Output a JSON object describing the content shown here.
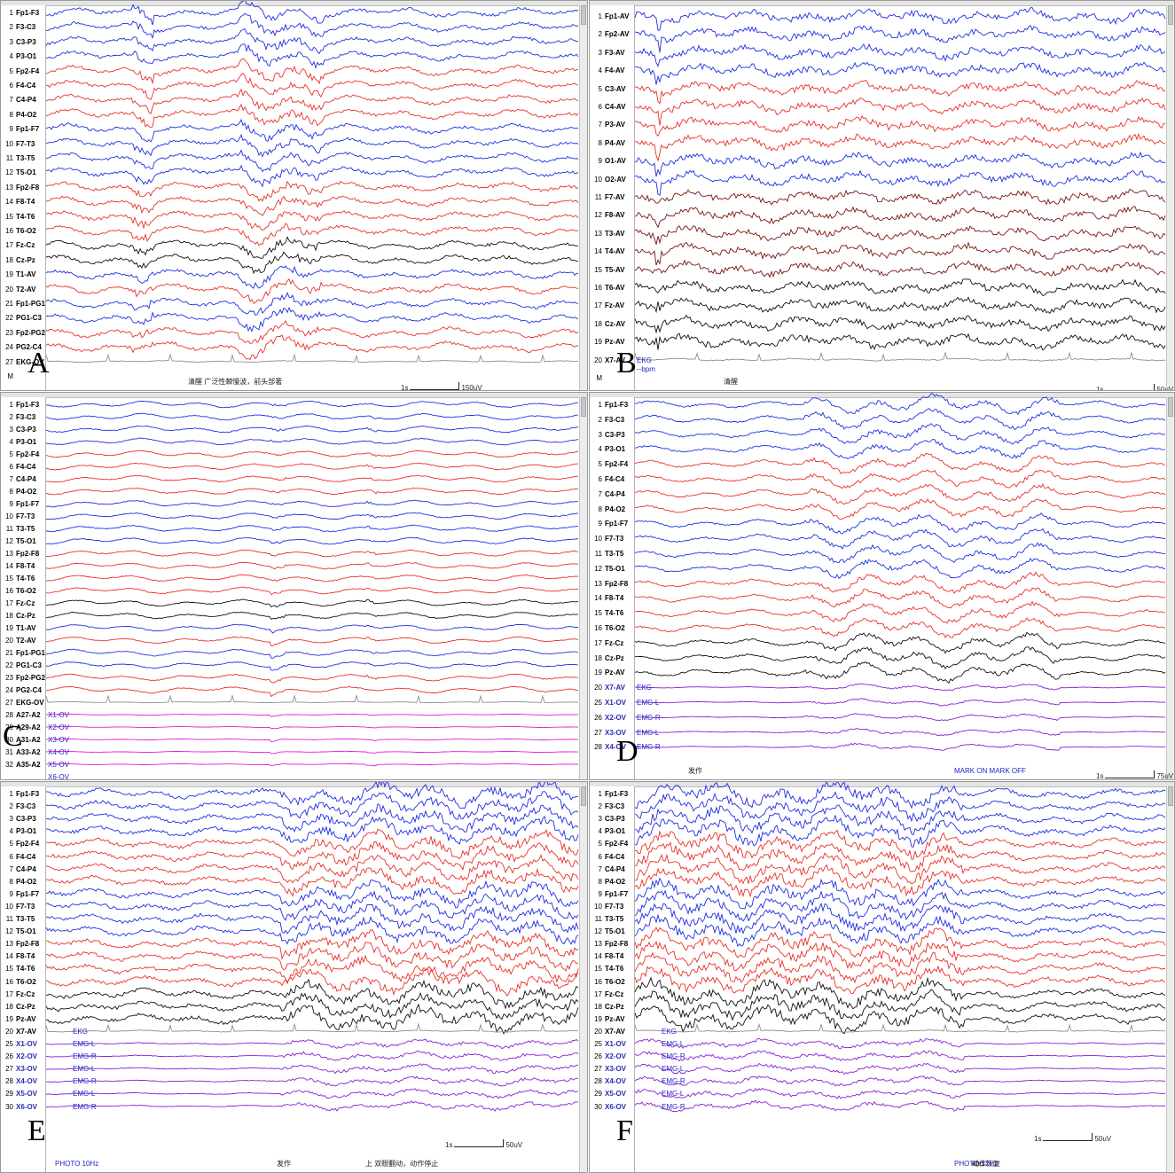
{
  "colors": {
    "blue": "#1f2fe0",
    "red": "#e8322a",
    "black": "#111111",
    "maroon": "#7a1414",
    "gray": "#8f8f8f",
    "magenta": "#e020d8",
    "purple": "#8a1fd0"
  },
  "panels": [
    {
      "id": "A",
      "letter": "A",
      "channels": [
        {
          "n": "1",
          "name": "Fp1-F3",
          "color": "blue"
        },
        {
          "n": "2",
          "name": "F3-C3",
          "color": "blue"
        },
        {
          "n": "3",
          "name": "C3-P3",
          "color": "blue"
        },
        {
          "n": "4",
          "name": "P3-O1",
          "color": "blue"
        },
        {
          "n": "5",
          "name": "Fp2-F4",
          "color": "red"
        },
        {
          "n": "6",
          "name": "F4-C4",
          "color": "red"
        },
        {
          "n": "7",
          "name": "C4-P4",
          "color": "red"
        },
        {
          "n": "8",
          "name": "P4-O2",
          "color": "red"
        },
        {
          "n": "9",
          "name": "Fp1-F7",
          "color": "blue"
        },
        {
          "n": "10",
          "name": "F7-T3",
          "color": "blue"
        },
        {
          "n": "11",
          "name": "T3-T5",
          "color": "blue"
        },
        {
          "n": "12",
          "name": "T5-O1",
          "color": "blue"
        },
        {
          "n": "13",
          "name": "Fp2-F8",
          "color": "red"
        },
        {
          "n": "14",
          "name": "F8-T4",
          "color": "red"
        },
        {
          "n": "15",
          "name": "T4-T6",
          "color": "red"
        },
        {
          "n": "16",
          "name": "T6-O2",
          "color": "red"
        },
        {
          "n": "17",
          "name": "Fz-Cz",
          "color": "black"
        },
        {
          "n": "18",
          "name": "Cz-Pz",
          "color": "black"
        },
        {
          "n": "19",
          "name": "T1-AV",
          "color": "blue"
        },
        {
          "n": "20",
          "name": "T2-AV",
          "color": "red"
        },
        {
          "n": "21",
          "name": "Fp1-PG1",
          "color": "blue"
        },
        {
          "n": "22",
          "name": "PG1-C3",
          "color": "blue"
        },
        {
          "n": "23",
          "name": "Fp2-PG2",
          "color": "red"
        },
        {
          "n": "24",
          "name": "PG2-C4",
          "color": "red"
        },
        {
          "n": "27",
          "name": "EKG-OV",
          "color": "gray"
        },
        {
          "n": "M",
          "name": "",
          "color": "none"
        }
      ],
      "aux_labels": [],
      "notes": [
        {
          "text": "清醒 广泛性棘慢波，前头部著",
          "color": "dark"
        }
      ],
      "time_scale": "1s",
      "amp_scale": "150uV"
    },
    {
      "id": "B",
      "letter": "B",
      "channels": [
        {
          "n": "1",
          "name": "Fp1-AV",
          "color": "blue"
        },
        {
          "n": "2",
          "name": "Fp2-AV",
          "color": "blue"
        },
        {
          "n": "3",
          "name": "F3-AV",
          "color": "blue"
        },
        {
          "n": "4",
          "name": "F4-AV",
          "color": "blue"
        },
        {
          "n": "5",
          "name": "C3-AV",
          "color": "red"
        },
        {
          "n": "6",
          "name": "C4-AV",
          "color": "red"
        },
        {
          "n": "7",
          "name": "P3-AV",
          "color": "red"
        },
        {
          "n": "8",
          "name": "P4-AV",
          "color": "red"
        },
        {
          "n": "9",
          "name": "O1-AV",
          "color": "blue"
        },
        {
          "n": "10",
          "name": "O2-AV",
          "color": "blue"
        },
        {
          "n": "11",
          "name": "F7-AV",
          "color": "maroon"
        },
        {
          "n": "12",
          "name": "F8-AV",
          "color": "maroon"
        },
        {
          "n": "13",
          "name": "T3-AV",
          "color": "maroon"
        },
        {
          "n": "14",
          "name": "T4-AV",
          "color": "maroon"
        },
        {
          "n": "15",
          "name": "T5-AV",
          "color": "maroon"
        },
        {
          "n": "16",
          "name": "T6-AV",
          "color": "black"
        },
        {
          "n": "17",
          "name": "Fz-AV",
          "color": "black"
        },
        {
          "n": "18",
          "name": "Cz-AV",
          "color": "black"
        },
        {
          "n": "19",
          "name": "Pz-AV",
          "color": "black"
        },
        {
          "n": "20",
          "name": "X7-AV",
          "color": "gray"
        },
        {
          "n": "M",
          "name": "",
          "color": "none"
        }
      ],
      "aux_labels": [
        {
          "text": "EKG",
          "row": 19
        },
        {
          "text": "--bpm",
          "row": 19.5
        }
      ],
      "notes": [
        {
          "text": "清醒",
          "color": "dark"
        }
      ],
      "time_scale": "1s",
      "amp_scale": "50uV"
    },
    {
      "id": "C",
      "letter": "C",
      "channels": [
        {
          "n": "1",
          "name": "Fp1-F3",
          "color": "blue"
        },
        {
          "n": "2",
          "name": "F3-C3",
          "color": "blue"
        },
        {
          "n": "3",
          "name": "C3-P3",
          "color": "blue"
        },
        {
          "n": "4",
          "name": "P3-O1",
          "color": "blue"
        },
        {
          "n": "5",
          "name": "Fp2-F4",
          "color": "red"
        },
        {
          "n": "6",
          "name": "F4-C4",
          "color": "red"
        },
        {
          "n": "7",
          "name": "C4-P4",
          "color": "red"
        },
        {
          "n": "8",
          "name": "P4-O2",
          "color": "red"
        },
        {
          "n": "9",
          "name": "Fp1-F7",
          "color": "blue"
        },
        {
          "n": "10",
          "name": "F7-T3",
          "color": "blue"
        },
        {
          "n": "11",
          "name": "T3-T5",
          "color": "blue"
        },
        {
          "n": "12",
          "name": "T5-O1",
          "color": "blue"
        },
        {
          "n": "13",
          "name": "Fp2-F8",
          "color": "red"
        },
        {
          "n": "14",
          "name": "F8-T4",
          "color": "red"
        },
        {
          "n": "15",
          "name": "T4-T6",
          "color": "red"
        },
        {
          "n": "16",
          "name": "T6-O2",
          "color": "red"
        },
        {
          "n": "17",
          "name": "Fz-Cz",
          "color": "black"
        },
        {
          "n": "18",
          "name": "Cz-Pz",
          "color": "black"
        },
        {
          "n": "19",
          "name": "T1-AV",
          "color": "blue"
        },
        {
          "n": "20",
          "name": "T2-AV",
          "color": "red"
        },
        {
          "n": "21",
          "name": "Fp1-PG1",
          "color": "blue"
        },
        {
          "n": "22",
          "name": "PG1-C3",
          "color": "blue"
        },
        {
          "n": "23",
          "name": "Fp2-PG2",
          "color": "red"
        },
        {
          "n": "24",
          "name": "PG2-C4",
          "color": "red"
        },
        {
          "n": "27",
          "name": "EKG-OV",
          "color": "gray"
        },
        {
          "n": "28",
          "name": "A27-A2",
          "color": "magenta"
        },
        {
          "n": "29",
          "name": "A29-A2",
          "color": "magenta"
        },
        {
          "n": "30",
          "name": "A31-A2",
          "color": "magenta"
        },
        {
          "n": "31",
          "name": "A33-A2",
          "color": "magenta"
        },
        {
          "n": "32",
          "name": "A35-A2",
          "color": "magenta"
        }
      ],
      "aux_labels": [
        {
          "text": "X1-OV",
          "row": 25
        },
        {
          "text": "X2-OV",
          "row": 26
        },
        {
          "text": "X3-OV",
          "row": 27
        },
        {
          "text": "X4-OV",
          "row": 28
        },
        {
          "text": "X5-OV",
          "row": 29
        },
        {
          "text": "X6-OV",
          "row": 30
        }
      ],
      "notes": [],
      "time_scale": "",
      "amp_scale": ""
    },
    {
      "id": "D",
      "letter": "D",
      "channels": [
        {
          "n": "1",
          "name": "Fp1-F3",
          "color": "blue"
        },
        {
          "n": "2",
          "name": "F3-C3",
          "color": "blue"
        },
        {
          "n": "3",
          "name": "C3-P3",
          "color": "blue"
        },
        {
          "n": "4",
          "name": "P3-O1",
          "color": "blue"
        },
        {
          "n": "5",
          "name": "Fp2-F4",
          "color": "red"
        },
        {
          "n": "6",
          "name": "F4-C4",
          "color": "red"
        },
        {
          "n": "7",
          "name": "C4-P4",
          "color": "red"
        },
        {
          "n": "8",
          "name": "P4-O2",
          "color": "red"
        },
        {
          "n": "9",
          "name": "Fp1-F7",
          "color": "blue"
        },
        {
          "n": "10",
          "name": "F7-T3",
          "color": "blue"
        },
        {
          "n": "11",
          "name": "T3-T5",
          "color": "blue"
        },
        {
          "n": "12",
          "name": "T5-O1",
          "color": "blue"
        },
        {
          "n": "13",
          "name": "Fp2-F8",
          "color": "red"
        },
        {
          "n": "14",
          "name": "F8-T4",
          "color": "red"
        },
        {
          "n": "15",
          "name": "T4-T6",
          "color": "red"
        },
        {
          "n": "16",
          "name": "T6-O2",
          "color": "red"
        },
        {
          "n": "17",
          "name": "Fz-Cz",
          "color": "black"
        },
        {
          "n": "18",
          "name": "Cz-Pz",
          "color": "black"
        },
        {
          "n": "19",
          "name": "Pz-AV",
          "color": "black"
        },
        {
          "n": "20",
          "name": "X7-AV",
          "color": "purple"
        },
        {
          "n": "25",
          "name": "X1-OV",
          "color": "purple"
        },
        {
          "n": "26",
          "name": "X2-OV",
          "color": "purple"
        },
        {
          "n": "27",
          "name": "X3-OV",
          "color": "purple"
        },
        {
          "n": "28",
          "name": "X4-OV",
          "color": "purple"
        }
      ],
      "aux_labels": [
        {
          "text": "EKG",
          "row": 19
        },
        {
          "text": "EMG-L",
          "row": 20
        },
        {
          "text": "EMG-R",
          "row": 21
        },
        {
          "text": "EMG-L",
          "row": 22
        },
        {
          "text": "EMG-R",
          "row": 23
        }
      ],
      "notes": [
        {
          "text": "发作",
          "color": "dark"
        },
        {
          "text": "MARK ON  MARK OFF",
          "color": "blue"
        }
      ],
      "time_scale": "1s",
      "amp_scale": "75uV"
    },
    {
      "id": "E",
      "letter": "E",
      "channels": [
        {
          "n": "1",
          "name": "Fp1-F3",
          "color": "blue"
        },
        {
          "n": "2",
          "name": "F3-C3",
          "color": "blue"
        },
        {
          "n": "3",
          "name": "C3-P3",
          "color": "blue"
        },
        {
          "n": "4",
          "name": "P3-O1",
          "color": "blue"
        },
        {
          "n": "5",
          "name": "Fp2-F4",
          "color": "red"
        },
        {
          "n": "6",
          "name": "F4-C4",
          "color": "red"
        },
        {
          "n": "7",
          "name": "C4-P4",
          "color": "red"
        },
        {
          "n": "8",
          "name": "P4-O2",
          "color": "red"
        },
        {
          "n": "9",
          "name": "Fp1-F7",
          "color": "blue"
        },
        {
          "n": "10",
          "name": "F7-T3",
          "color": "blue"
        },
        {
          "n": "11",
          "name": "T3-T5",
          "color": "blue"
        },
        {
          "n": "12",
          "name": "T5-O1",
          "color": "blue"
        },
        {
          "n": "13",
          "name": "Fp2-F8",
          "color": "red"
        },
        {
          "n": "14",
          "name": "F8-T4",
          "color": "red"
        },
        {
          "n": "15",
          "name": "T4-T6",
          "color": "red"
        },
        {
          "n": "16",
          "name": "T6-O2",
          "color": "red"
        },
        {
          "n": "17",
          "name": "Fz-Cz",
          "color": "black"
        },
        {
          "n": "18",
          "name": "Cz-Pz",
          "color": "black"
        },
        {
          "n": "19",
          "name": "Pz-AV",
          "color": "black"
        },
        {
          "n": "20",
          "name": "X7-AV",
          "color": "gray"
        },
        {
          "n": "25",
          "name": "X1-OV",
          "color": "purple"
        },
        {
          "n": "26",
          "name": "X2-OV",
          "color": "purple"
        },
        {
          "n": "27",
          "name": "X3-OV",
          "color": "purple"
        },
        {
          "n": "28",
          "name": "X4-OV",
          "color": "purple"
        },
        {
          "n": "29",
          "name": "X5-OV",
          "color": "purple"
        },
        {
          "n": "30",
          "name": "X6-OV",
          "color": "purple"
        }
      ],
      "aux_labels": [
        {
          "text": "EKG",
          "row": 19
        },
        {
          "text": "EMG-L",
          "row": 20
        },
        {
          "text": "EMG-R",
          "row": 21
        },
        {
          "text": "EMG-L",
          "row": 22
        },
        {
          "text": "EMG-R",
          "row": 23
        },
        {
          "text": "EMG-L",
          "row": 24
        },
        {
          "text": "EMG-R",
          "row": 25
        }
      ],
      "notes": [
        {
          "text": "PHOTO 10Hz",
          "color": "blue"
        },
        {
          "text": "发作",
          "color": "dark"
        },
        {
          "text": "上 双眼翻动，动作停止",
          "color": "dark"
        }
      ],
      "time_scale": "1s",
      "amp_scale": "50uV"
    },
    {
      "id": "F",
      "letter": "F",
      "channels": [
        {
          "n": "1",
          "name": "Fp1-F3",
          "color": "blue"
        },
        {
          "n": "2",
          "name": "F3-C3",
          "color": "blue"
        },
        {
          "n": "3",
          "name": "C3-P3",
          "color": "blue"
        },
        {
          "n": "4",
          "name": "P3-O1",
          "color": "blue"
        },
        {
          "n": "5",
          "name": "Fp2-F4",
          "color": "red"
        },
        {
          "n": "6",
          "name": "F4-C4",
          "color": "red"
        },
        {
          "n": "7",
          "name": "C4-P4",
          "color": "red"
        },
        {
          "n": "8",
          "name": "P4-O2",
          "color": "red"
        },
        {
          "n": "9",
          "name": "Fp1-F7",
          "color": "blue"
        },
        {
          "n": "10",
          "name": "F7-T3",
          "color": "blue"
        },
        {
          "n": "11",
          "name": "T3-T5",
          "color": "blue"
        },
        {
          "n": "12",
          "name": "T5-O1",
          "color": "blue"
        },
        {
          "n": "13",
          "name": "Fp2-F8",
          "color": "red"
        },
        {
          "n": "14",
          "name": "F8-T4",
          "color": "red"
        },
        {
          "n": "15",
          "name": "T4-T6",
          "color": "red"
        },
        {
          "n": "16",
          "name": "T6-O2",
          "color": "red"
        },
        {
          "n": "17",
          "name": "Fz-Cz",
          "color": "black"
        },
        {
          "n": "18",
          "name": "Cz-Pz",
          "color": "black"
        },
        {
          "n": "19",
          "name": "Pz-AV",
          "color": "black"
        },
        {
          "n": "20",
          "name": "X7-AV",
          "color": "gray"
        },
        {
          "n": "25",
          "name": "X1-OV",
          "color": "purple"
        },
        {
          "n": "26",
          "name": "X2-OV",
          "color": "purple"
        },
        {
          "n": "27",
          "name": "X3-OV",
          "color": "purple"
        },
        {
          "n": "28",
          "name": "X4-OV",
          "color": "purple"
        },
        {
          "n": "29",
          "name": "X5-OV",
          "color": "purple"
        },
        {
          "n": "30",
          "name": "X6-OV",
          "color": "purple"
        }
      ],
      "aux_labels": [
        {
          "text": "EKG",
          "row": 19
        },
        {
          "text": "EMG-L",
          "row": 20
        },
        {
          "text": "EMG-R",
          "row": 21
        },
        {
          "text": "EMG-L",
          "row": 22
        },
        {
          "text": "EMG-R",
          "row": 23
        },
        {
          "text": "EMG-L",
          "row": 24
        },
        {
          "text": "EMG-R",
          "row": 25
        }
      ],
      "notes": [
        {
          "text": "动作恢复",
          "color": "dark"
        },
        {
          "text": "PHOTO 12Hz",
          "color": "blue"
        },
        {
          "text": "end",
          "color": "dark"
        }
      ],
      "time_scale": "1s",
      "amp_scale": "50uV"
    }
  ]
}
